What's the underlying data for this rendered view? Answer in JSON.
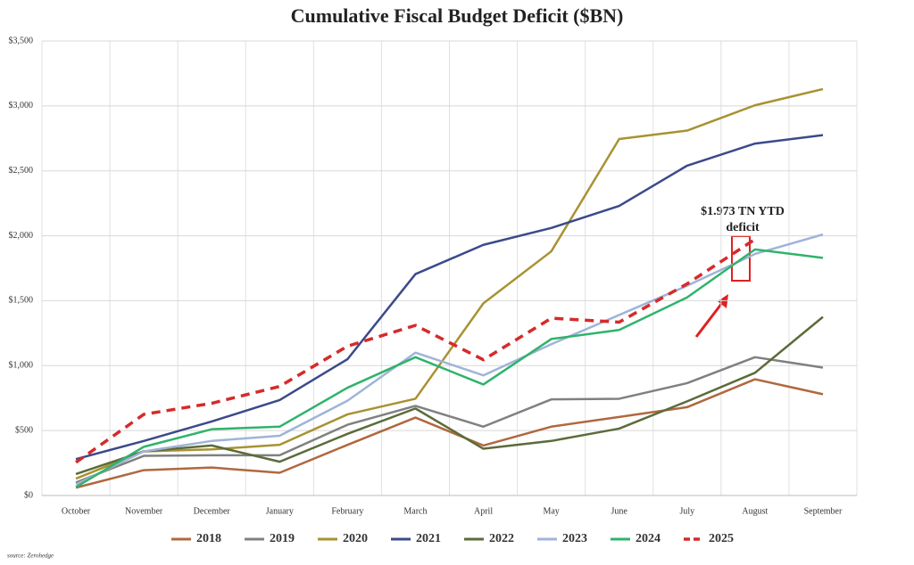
{
  "chart_data": {
    "type": "line",
    "title": "Cumulative Fiscal Budget Deficit ($BN)",
    "categories": [
      "October",
      "November",
      "December",
      "January",
      "February",
      "March",
      "April",
      "May",
      "June",
      "July",
      "August",
      "September"
    ],
    "series": [
      {
        "name": "2018",
        "color": "#b0683f",
        "values": [
          60,
          195,
          215,
          175,
          390,
          600,
          385,
          530,
          605,
          680,
          895,
          780
        ]
      },
      {
        "name": "2019",
        "color": "#808080",
        "values": [
          100,
          305,
          310,
          310,
          545,
          690,
          530,
          740,
          745,
          865,
          1065,
          985
        ]
      },
      {
        "name": "2020",
        "color": "#a89232",
        "values": [
          130,
          340,
          355,
          390,
          625,
          745,
          1480,
          1880,
          2745,
          2810,
          3005,
          3130
        ]
      },
      {
        "name": "2021",
        "color": "#3b4a8a",
        "values": [
          280,
          420,
          570,
          735,
          1050,
          1705,
          1930,
          2060,
          2230,
          2540,
          2710,
          2775
        ]
      },
      {
        "name": "2022",
        "color": "#5c6b3a",
        "values": [
          165,
          340,
          385,
          260,
          475,
          670,
          360,
          420,
          515,
          725,
          945,
          1375
        ]
      },
      {
        "name": "2023",
        "color": "#9fb4d8",
        "values": [
          85,
          340,
          420,
          460,
          730,
          1100,
          925,
          1165,
          1390,
          1615,
          1860,
          2010
        ]
      },
      {
        "name": "2024",
        "color": "#2fb36b",
        "values": [
          65,
          375,
          510,
          530,
          830,
          1065,
          855,
          1205,
          1275,
          1525,
          1895,
          1830
        ]
      },
      {
        "name": "2025",
        "color": "#d62a2a",
        "dashed": true,
        "values": [
          255,
          625,
          710,
          840,
          1150,
          1310,
          1045,
          1365,
          1335,
          1630,
          1973,
          null
        ]
      }
    ],
    "ylim": [
      0,
      3500
    ],
    "yticks": [
      {
        "value": 0,
        "label": "$0"
      },
      {
        "value": 500,
        "label": "$500"
      },
      {
        "value": 1000,
        "label": "$1,000"
      },
      {
        "value": 1500,
        "label": "$1,500"
      },
      {
        "value": 2000,
        "label": "$2,000"
      },
      {
        "value": 2500,
        "label": "$2,500"
      },
      {
        "value": 3000,
        "label": "$3,000"
      },
      {
        "value": 3500,
        "label": "$3,500"
      }
    ],
    "grid": true,
    "legend": "bottom",
    "annotation": [
      "$1.973 TN YTD",
      "deficit"
    ],
    "source": "source: Zerohedge"
  }
}
